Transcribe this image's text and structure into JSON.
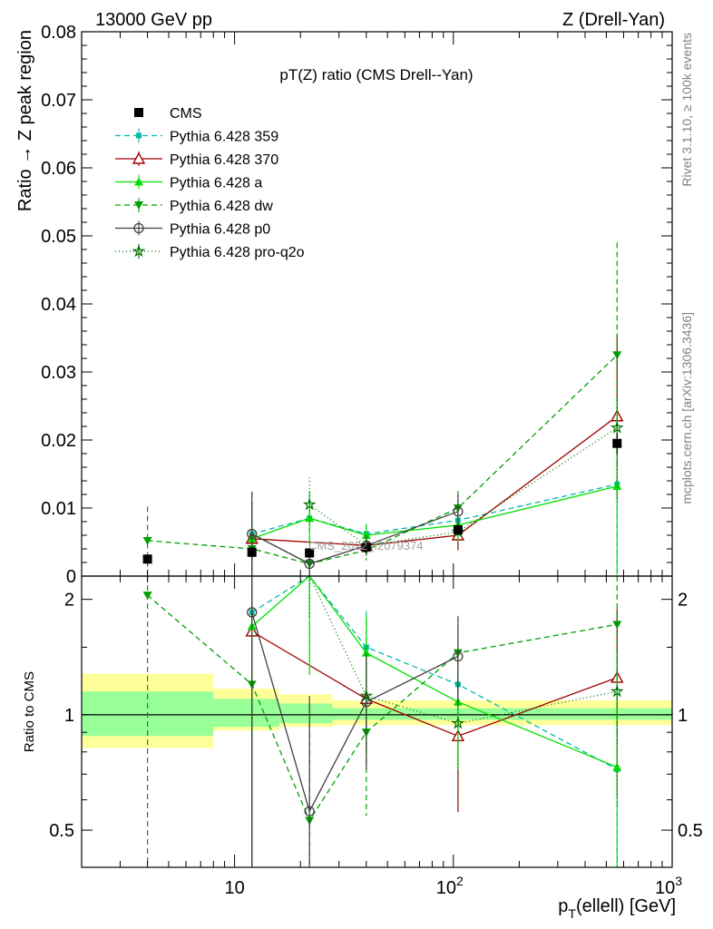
{
  "header": {
    "left": "13000 GeV pp",
    "right": "Z (Drell-Yan)"
  },
  "side_labels": {
    "rivet": "Rivet 3.1.10, ≥ 100k events",
    "mcplots": "mcplots.cern.ch [arXiv:1306.3436]"
  },
  "watermark": "CMS_2022_I2079374",
  "chart_data": {
    "type": "scatter",
    "title": "pT(Z) ratio (CMS Drell--Yan)",
    "xscale": "log",
    "xlim": [
      2,
      1000
    ],
    "xlabel": "p_T(ellell) [GeV]",
    "xtick_labels": [
      "10",
      "10^2",
      "10^3"
    ],
    "legend_position": "top-left",
    "grid": false,
    "main": {
      "ylabel": "Ratio → Z peak region",
      "ylim": [
        0,
        0.08
      ],
      "yticks": [
        "0",
        "0.01",
        "0.02",
        "0.03",
        "0.04",
        "0.05",
        "0.06",
        "0.07",
        "0.08"
      ]
    },
    "ratio": {
      "ylabel": "Ratio to CMS",
      "ylim": [
        0.4,
        2.3
      ],
      "yscale": "log",
      "yticks": [
        "0.5",
        "1",
        "2"
      ],
      "bands": [
        {
          "xlo": 2,
          "xhi": 8,
          "inner": [
            0.88,
            1.15
          ],
          "outer": [
            0.82,
            1.28
          ]
        },
        {
          "xlo": 8,
          "xhi": 16,
          "inner": [
            0.93,
            1.1
          ],
          "outer": [
            0.91,
            1.17
          ]
        },
        {
          "xlo": 16,
          "xhi": 28,
          "inner": [
            0.95,
            1.07
          ],
          "outer": [
            0.93,
            1.13
          ]
        },
        {
          "xlo": 28,
          "xhi": 1000,
          "inner": [
            0.97,
            1.04
          ],
          "outer": [
            0.94,
            1.09
          ]
        }
      ]
    },
    "x": [
      4,
      12,
      22,
      40,
      105,
      560
    ],
    "data": {
      "name": "CMS",
      "color": "#000000",
      "y": [
        0.0025,
        0.0035,
        0.0034,
        0.0042,
        0.0068,
        0.0195
      ],
      "err": [
        0.0006,
        0.0008,
        0.0007,
        0.0006,
        0.0008,
        0.0015
      ]
    },
    "series": [
      {
        "name": "Pythia 6.428 359",
        "color": "#00b7a8",
        "dash": "6,4",
        "marker": "square",
        "y": [
          null,
          0.0062,
          0.0085,
          0.0062,
          0.0082,
          0.0135
        ],
        "yerr": [
          null,
          0.0062,
          0.004,
          0.0015,
          0.0025,
          0.013
        ],
        "ratio": [
          null,
          1.85,
          2.6,
          1.5,
          1.2,
          0.72
        ]
      },
      {
        "name": "Pythia 6.428 370",
        "color": "#a00000",
        "dash": "",
        "marker": "triangle-open",
        "y": [
          null,
          0.0055,
          null,
          0.0045,
          0.006,
          0.0235
        ],
        "yerr": [
          null,
          0.0055,
          null,
          0.0012,
          0.0022,
          0.012
        ],
        "ratio": [
          null,
          1.65,
          null,
          1.1,
          0.88,
          1.25
        ]
      },
      {
        "name": "Pythia 6.428 a",
        "color": "#00e000",
        "dash": "",
        "marker": "triangle-up",
        "y": [
          null,
          0.0055,
          0.0085,
          0.006,
          0.0075,
          0.0132
        ],
        "yerr": [
          null,
          0.0055,
          0.004,
          0.0015,
          0.0025,
          0.013
        ],
        "ratio": [
          null,
          1.7,
          2.4,
          1.45,
          1.08,
          0.73
        ]
      },
      {
        "name": "Pythia 6.428 dw",
        "color": "#00a000",
        "dash": "6,4",
        "marker": "triangle-down",
        "y": [
          0.0052,
          0.004,
          0.0018,
          0.0038,
          0.01,
          0.0325
        ],
        "yerr": [
          0.005,
          0.004,
          0.0018,
          0.0015,
          0.0025,
          0.0165
        ],
        "ratio": [
          2.05,
          1.2,
          0.53,
          0.9,
          1.45,
          1.72
        ]
      },
      {
        "name": "Pythia 6.428 p0",
        "color": "#404040",
        "dash": "",
        "marker": "circle-open",
        "y": [
          null,
          0.0062,
          0.0018,
          0.0045,
          0.0095,
          null
        ],
        "yerr": [
          null,
          0.0062,
          0.0018,
          0.0015,
          0.0025,
          null
        ],
        "ratio": [
          null,
          1.85,
          0.56,
          1.08,
          1.42,
          null
        ]
      },
      {
        "name": "Pythia 6.428 pro-q2o",
        "color": "#007000",
        "dash": "1,3",
        "marker": "star",
        "y": [
          null,
          null,
          0.0105,
          0.0045,
          0.0065,
          0.0218
        ],
        "yerr": [
          null,
          null,
          0.004,
          0.0015,
          0.0025,
          0.011
        ],
        "ratio": [
          null,
          null,
          2.9,
          1.12,
          0.95,
          1.15
        ]
      }
    ]
  }
}
